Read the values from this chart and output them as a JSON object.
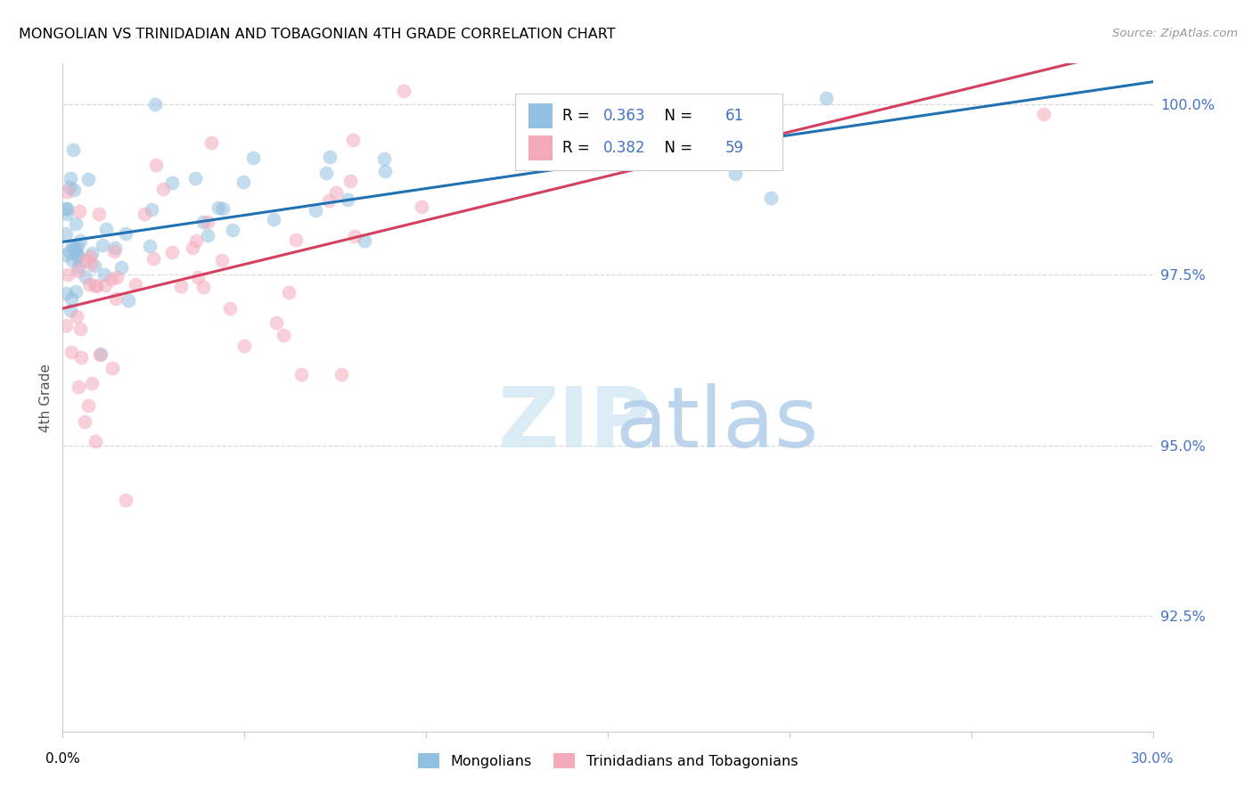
{
  "title": "MONGOLIAN VS TRINIDADIAN AND TOBAGONIAN 4TH GRADE CORRELATION CHART",
  "source": "Source: ZipAtlas.com",
  "ylabel": "4th Grade",
  "ylabel_right_labels": [
    "100.0%",
    "97.5%",
    "95.0%",
    "92.5%"
  ],
  "ylabel_right_values": [
    1.0,
    0.975,
    0.95,
    0.925
  ],
  "xlim": [
    0.0,
    0.3
  ],
  "ylim": [
    0.908,
    1.006
  ],
  "blue_color": "#92C0E0",
  "pink_color": "#F4AABB",
  "blue_line_color": "#2171b5",
  "pink_line_color": "#D44060",
  "R_blue": "0.363",
  "N_blue": "61",
  "R_pink": "0.382",
  "N_pink": "59",
  "blue_label": "Mongolians",
  "pink_label": "Trinidadians and Tobagonians",
  "watermark_zip": "ZIP",
  "watermark_atlas": "atlas",
  "grid_color": "#d9d9d9",
  "tick_color": "#4472C4",
  "axis_label_color": "#555555",
  "title_fontsize": 11.5,
  "source_fontsize": 9.5
}
